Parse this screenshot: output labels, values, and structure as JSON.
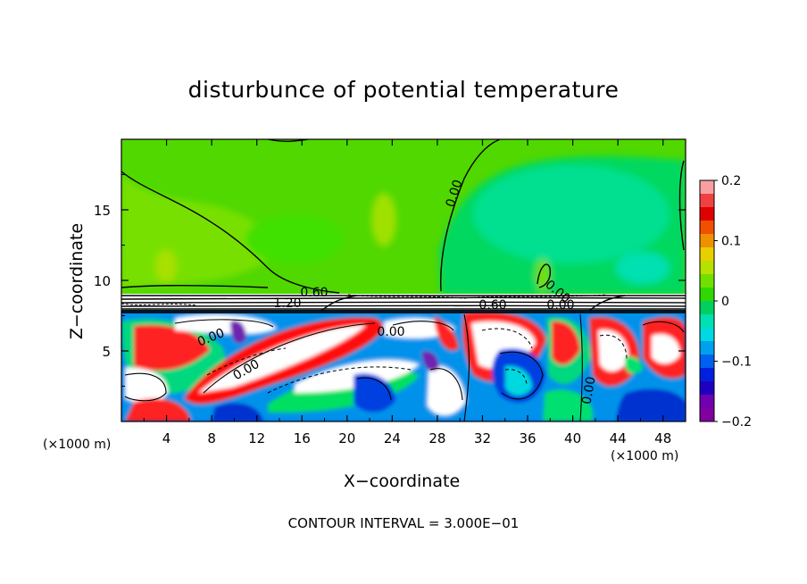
{
  "title": "disturbunce of potential temperature",
  "xlabel": "X−coordinate",
  "ylabel": "Z−coordinate",
  "x_unit_left": "(×1000 m)",
  "x_unit_right": "(×1000 m)",
  "contour_interval": "CONTOUR INTERVAL = 3.000E−01",
  "chart_data": {
    "type": "heatmap",
    "title": "disturbunce of potential temperature",
    "xlabel": "X−coordinate",
    "ylabel": "Z−coordinate",
    "x_unit": "(×1000 m)",
    "xlim": [
      0,
      50
    ],
    "ylim": [
      0,
      20
    ],
    "x_ticks": [
      4,
      8,
      12,
      16,
      20,
      24,
      28,
      32,
      36,
      40,
      44,
      48
    ],
    "y_ticks": [
      5,
      10,
      15
    ],
    "colorbar": {
      "range": [
        -0.2,
        0.2
      ],
      "ticks": [
        "0.2",
        "0.1",
        "0",
        "−0.1",
        "−0.2"
      ],
      "colors": [
        "#f8a0a0",
        "#f04040",
        "#e00000",
        "#f05000",
        "#f09000",
        "#e8d000",
        "#b8e000",
        "#70e000",
        "#30d800",
        "#00d060",
        "#00e0b0",
        "#00d8e0",
        "#00a0f0",
        "#0060f0",
        "#0020e0",
        "#2000c0",
        "#7000b0",
        "#8000a0"
      ]
    },
    "contour_interval": "3.000E−01",
    "contour_labels": [
      "0.00",
      "0.00",
      "0.60",
      "1.20",
      "0.60",
      "0.00",
      "0.00",
      "0.00",
      "0.00",
      "0.00"
    ],
    "grid": false,
    "legend": "colorbar at right"
  }
}
